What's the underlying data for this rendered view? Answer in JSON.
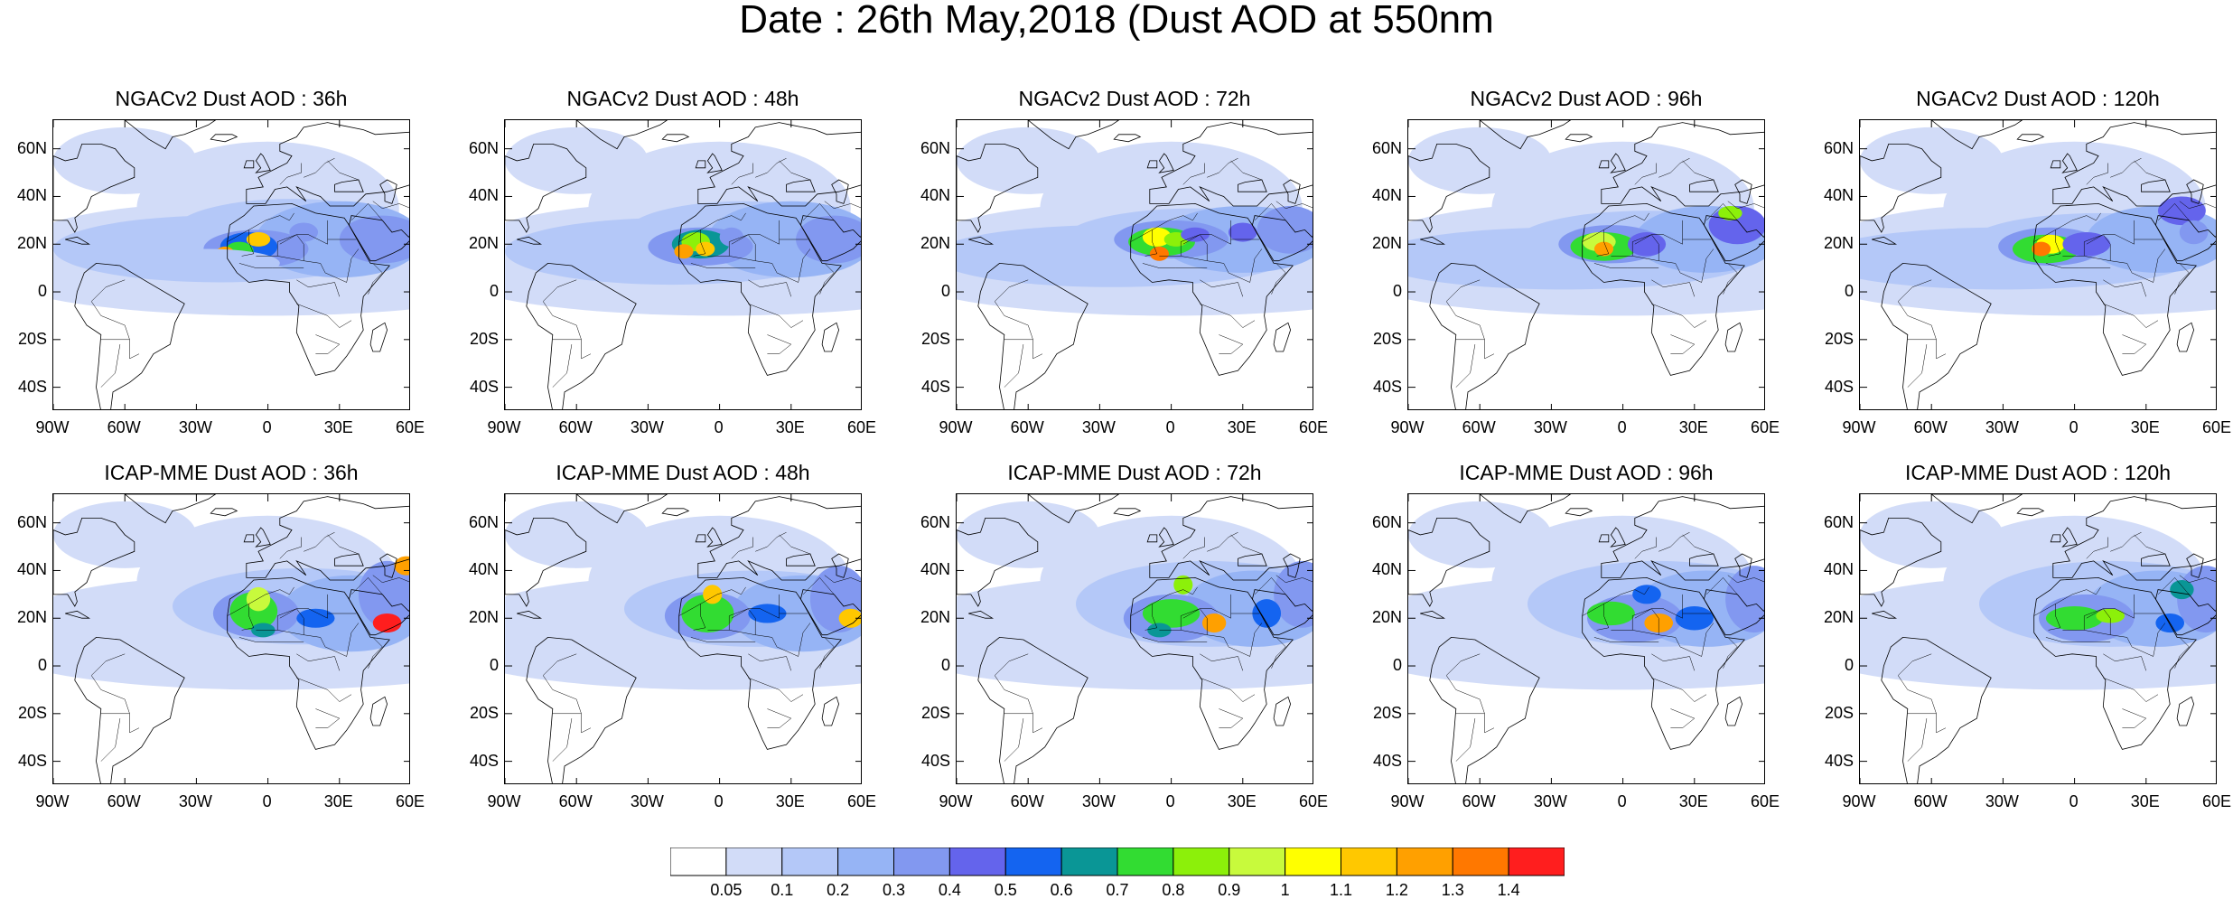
{
  "title": "Date : 26th May,2018 (Dust AOD at 550nm",
  "panels": [
    {
      "title": "NGACv2 Dust AOD : 36h",
      "model": "NGACv2",
      "lead": "36h"
    },
    {
      "title": "NGACv2 Dust AOD : 48h",
      "model": "NGACv2",
      "lead": "48h"
    },
    {
      "title": "NGACv2 Dust AOD : 72h",
      "model": "NGACv2",
      "lead": "72h"
    },
    {
      "title": "NGACv2 Dust AOD : 96h",
      "model": "NGACv2",
      "lead": "96h"
    },
    {
      "title": "NGACv2 Dust AOD : 120h",
      "model": "NGACv2",
      "lead": "120h"
    },
    {
      "title": "ICAP-MME Dust AOD : 36h",
      "model": "ICAP-MME",
      "lead": "36h"
    },
    {
      "title": "ICAP-MME Dust AOD : 48h",
      "model": "ICAP-MME",
      "lead": "48h"
    },
    {
      "title": "ICAP-MME Dust AOD : 72h",
      "model": "ICAP-MME",
      "lead": "72h"
    },
    {
      "title": "ICAP-MME Dust AOD : 96h",
      "model": "ICAP-MME",
      "lead": "96h"
    },
    {
      "title": "ICAP-MME Dust AOD : 120h",
      "model": "ICAP-MME",
      "lead": "120h"
    }
  ],
  "lat_ticks": [
    "60N",
    "40N",
    "20N",
    "0",
    "20S",
    "40S"
  ],
  "lon_ticks": [
    "90W",
    "60W",
    "30W",
    "0",
    "30E",
    "60E"
  ],
  "colorbar": {
    "levels": [
      "0.05",
      "0.1",
      "0.2",
      "0.3",
      "0.4",
      "0.5",
      "0.6",
      "0.7",
      "0.8",
      "0.9",
      "1",
      "1.1",
      "1.2",
      "1.3",
      "1.4"
    ],
    "colors": [
      "#ffffff",
      "#d2dcf8",
      "#b4c8f8",
      "#96b4f5",
      "#8298f0",
      "#6464ec",
      "#1464f0",
      "#0a9696",
      "#32dc32",
      "#8cf00a",
      "#c8fa3c",
      "#ffff00",
      "#ffc800",
      "#ffa000",
      "#ff7800",
      "#ff1e1e"
    ]
  }
}
